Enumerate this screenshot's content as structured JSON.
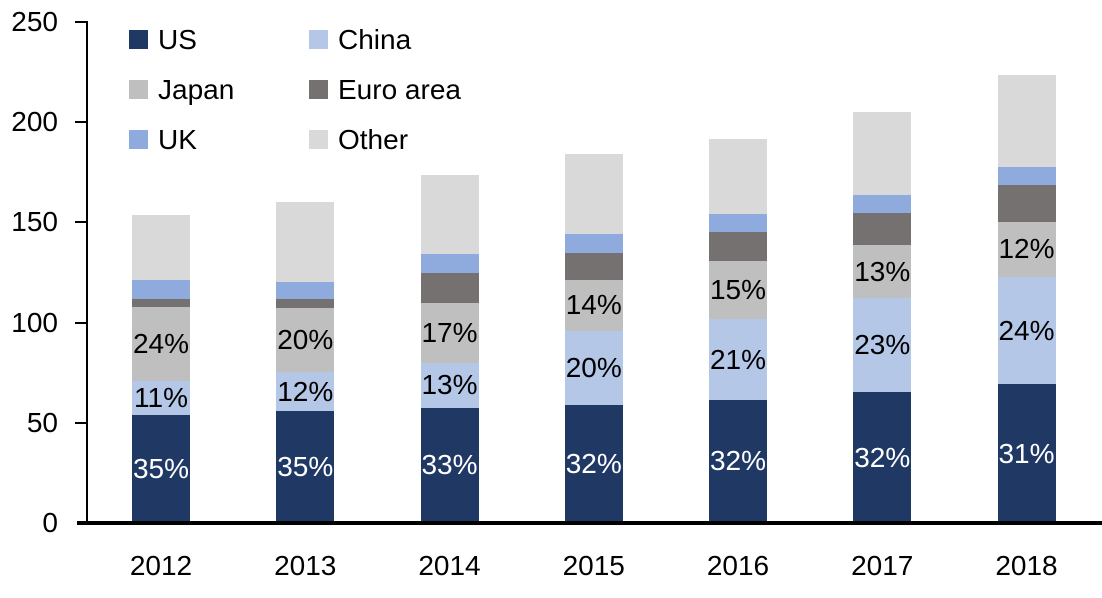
{
  "chart_data": {
    "type": "bar",
    "subtype": "stacked",
    "title": "",
    "xlabel": "",
    "ylabel": "",
    "ylim": [
      0,
      250
    ],
    "yticks": [
      0,
      50,
      100,
      150,
      200,
      250
    ],
    "grid": false,
    "legend_position": "top-left-inside",
    "categories": [
      "2012",
      "2013",
      "2014",
      "2015",
      "2016",
      "2017",
      "2018"
    ],
    "series": [
      {
        "name": "US",
        "color": "#1f3864",
        "values": [
          53.8,
          56.0,
          57.4,
          58.9,
          61.4,
          65.3,
          69.3
        ],
        "labels": [
          "35%",
          "35%",
          "33%",
          "32%",
          "32%",
          "32%",
          "31%"
        ],
        "label_color": "#ffffff"
      },
      {
        "name": "China",
        "color": "#b4c7e7",
        "values": [
          16.9,
          19.2,
          22.6,
          36.8,
          40.3,
          46.9,
          53.5
        ],
        "labels": [
          "11%",
          "12%",
          "13%",
          "20%",
          "21%",
          "23%",
          "24%"
        ],
        "label_color": "#000000"
      },
      {
        "name": "Japan",
        "color": "#bfbfbf",
        "values": [
          36.9,
          32.0,
          29.6,
          25.8,
          28.8,
          26.5,
          27.5
        ],
        "labels": [
          "24%",
          "20%",
          "17%",
          "14%",
          "15%",
          "13%",
          "12%"
        ],
        "label_color": "#000000"
      },
      {
        "name": "Euro area",
        "color": "#767171",
        "values": [
          4.0,
          4.5,
          15.0,
          13.0,
          14.5,
          16.0,
          18.3
        ],
        "labels": [
          "",
          "",
          "",
          "",
          "",
          "",
          ""
        ],
        "label_color": "#000000"
      },
      {
        "name": "UK",
        "color": "#8faadc",
        "values": [
          9.5,
          8.5,
          9.4,
          9.5,
          9.0,
          9.0,
          9.0
        ],
        "labels": [
          "",
          "",
          "",
          "",
          "",
          "",
          ""
        ],
        "label_color": "#000000"
      },
      {
        "name": "Other",
        "color": "#d9d9d9",
        "values": [
          32.6,
          40.0,
          39.7,
          40.1,
          37.6,
          41.4,
          46.0
        ],
        "labels": [
          "",
          "",
          "",
          "",
          "",
          "",
          ""
        ],
        "label_color": "#000000"
      }
    ],
    "totals": [
      153.7,
      160.2,
      173.7,
      184.1,
      191.6,
      205.1,
      223.6
    ]
  },
  "legend": {
    "items": [
      {
        "label": "US",
        "color": "#1f3864"
      },
      {
        "label": "China",
        "color": "#b4c7e7"
      },
      {
        "label": "Japan",
        "color": "#bfbfbf"
      },
      {
        "label": "Euro area",
        "color": "#767171"
      },
      {
        "label": "UK",
        "color": "#8faadc"
      },
      {
        "label": "Other",
        "color": "#d9d9d9"
      }
    ]
  },
  "axis_color": "#000000"
}
